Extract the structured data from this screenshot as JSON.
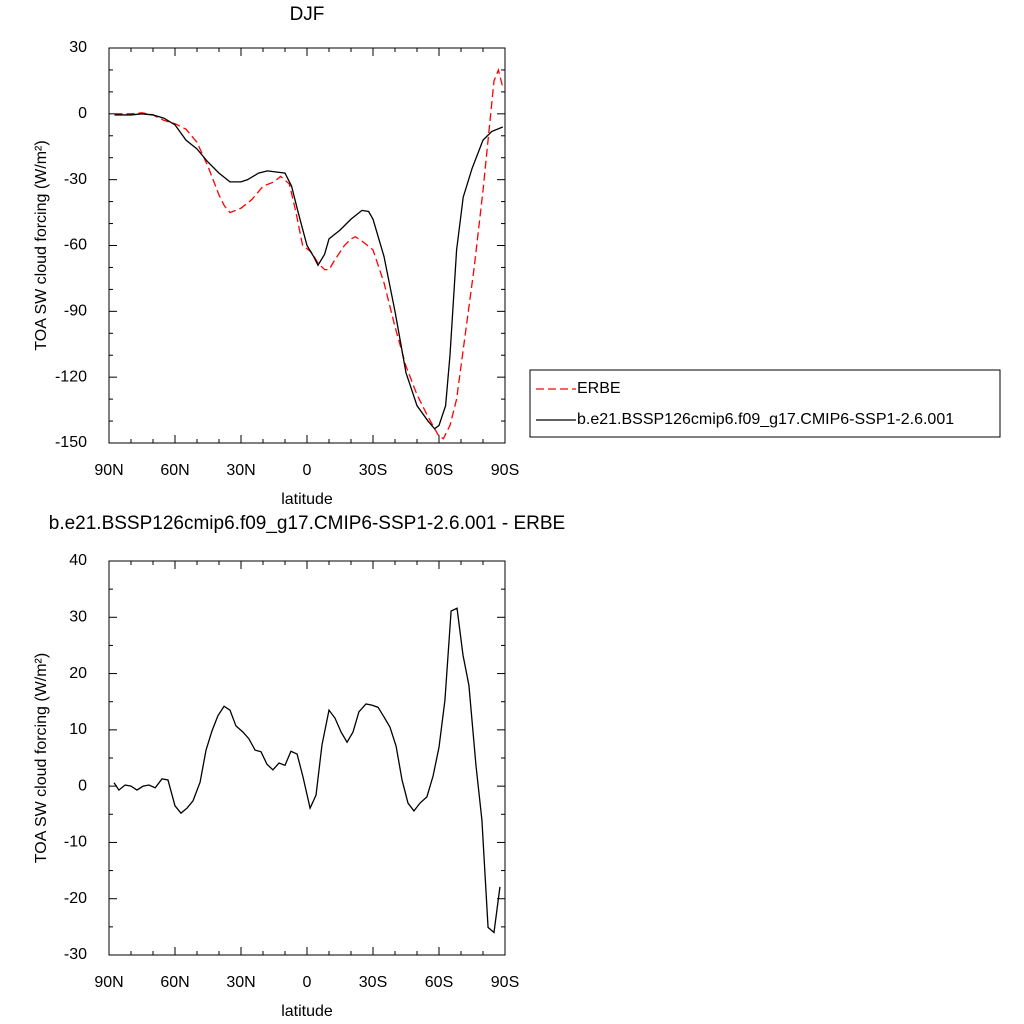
{
  "chart_data": [
    {
      "type": "line",
      "title": "DJF",
      "xlabel": "latitude",
      "ylabel": "TOA SW cloud forcing (W/m²)",
      "xlim": [
        90,
        -90
      ],
      "ylim": [
        -150,
        30
      ],
      "xticks": [
        {
          "value": 90,
          "label": "90N"
        },
        {
          "value": 60,
          "label": "60N"
        },
        {
          "value": 30,
          "label": "30N"
        },
        0,
        {
          "value": -30,
          "label": "30S"
        },
        {
          "value": -60,
          "label": "60S"
        },
        {
          "value": -90,
          "label": "90S"
        }
      ],
      "yticks": [
        -150,
        -120,
        -90,
        -60,
        -30,
        0,
        30
      ],
      "xminorticks": [
        80,
        70,
        50,
        40,
        20,
        10,
        -10,
        -20,
        -40,
        -50,
        -70,
        -80
      ],
      "yminorticks": [
        -140,
        -130,
        -110,
        -100,
        -80,
        -70,
        -50,
        -40,
        -20,
        -10,
        10,
        20
      ],
      "legend": true,
      "series": [
        {
          "name": "ERBE",
          "color": "#ff0000",
          "dash": "dashed",
          "x": [
            87.5,
            80,
            75,
            70,
            65,
            60,
            55,
            50,
            45,
            40,
            37.5,
            35,
            30,
            25,
            20,
            15,
            12,
            8,
            5,
            2,
            -2,
            -5,
            -8,
            -10,
            -13,
            -17,
            -20,
            -22,
            -25,
            -30,
            -35,
            -40,
            -45,
            -50,
            -55,
            -60,
            -62,
            -65,
            -68,
            -72,
            -76,
            -80,
            -83,
            -85,
            -87,
            -89
          ],
          "values": [
            0,
            0,
            0.5,
            -0.5,
            -3,
            -4.5,
            -7,
            -13,
            -24,
            -37,
            -42,
            -45,
            -43,
            -39,
            -33,
            -31,
            -28.5,
            -32,
            -45,
            -60,
            -63,
            -68,
            -71,
            -71,
            -66,
            -60,
            -57,
            -56,
            -58,
            -62,
            -77,
            -97,
            -115,
            -128,
            -138,
            -147,
            -148,
            -142,
            -130,
            -100,
            -70,
            -35,
            -5,
            15,
            20,
            12
          ]
        },
        {
          "name": "b.e21.BSSP126cmip6.f09_g17.CMIP6-SSP1-2.6.001",
          "color": "#000000",
          "dash": "solid",
          "x": [
            87.5,
            80,
            75,
            70,
            65,
            60,
            55,
            50,
            45,
            40,
            35,
            30,
            27,
            22,
            18,
            14,
            10,
            7,
            4,
            0,
            -3,
            -5,
            -8,
            -10,
            -15,
            -20,
            -25,
            -28,
            -30,
            -35,
            -40,
            -45,
            -50,
            -55,
            -58,
            -60,
            -63,
            -65,
            -68,
            -71,
            -75,
            -80,
            -84,
            -89
          ],
          "values": [
            -0.5,
            -0.5,
            0,
            -0.5,
            -2,
            -5,
            -12,
            -16,
            -22,
            -27,
            -31,
            -31,
            -30,
            -27,
            -26,
            -26.5,
            -27,
            -33,
            -45,
            -60,
            -65,
            -69,
            -64,
            -57,
            -53,
            -48,
            -44,
            -44.5,
            -48,
            -65,
            -90,
            -118,
            -133,
            -140,
            -143.5,
            -142,
            -133,
            -110,
            -62,
            -38,
            -25,
            -12,
            -8,
            -6
          ]
        }
      ]
    },
    {
      "type": "line",
      "title": "b.e21.BSSP126cmip6.f09_g17.CMIP6-SSP1-2.6.001 - ERBE",
      "xlabel": "latitude",
      "ylabel": "TOA SW cloud forcing (W/m²)",
      "xlim": [
        90,
        -90
      ],
      "ylim": [
        -30,
        40
      ],
      "xticks": [
        {
          "value": 90,
          "label": "90N"
        },
        {
          "value": 60,
          "label": "60N"
        },
        {
          "value": 30,
          "label": "30N"
        },
        0,
        {
          "value": -30,
          "label": "30S"
        },
        {
          "value": -60,
          "label": "60S"
        },
        {
          "value": -90,
          "label": "90S"
        }
      ],
      "yticks": [
        -30,
        -20,
        -10,
        0,
        10,
        20,
        30,
        40
      ],
      "xminorticks": [
        80,
        70,
        50,
        40,
        20,
        10,
        -10,
        -20,
        -40,
        -50,
        -70,
        -80
      ],
      "yminorticks": [
        -25,
        -15,
        -5,
        5,
        15,
        25,
        35
      ],
      "color": "#000000",
      "x": [
        87.7,
        85.5,
        82.7,
        80,
        77.3,
        74.5,
        71.8,
        69,
        65.9,
        63.2,
        60,
        57.3,
        54.5,
        51.8,
        48.6,
        45.9,
        43.2,
        40.5,
        37.7,
        35,
        32.3,
        29.1,
        26.4,
        23.6,
        20.9,
        18.2,
        15.5,
        12.7,
        10,
        7.3,
        4.5,
        1.8,
        -1.4,
        -4.1,
        -6.8,
        -10,
        -12.7,
        -15.5,
        -18.2,
        -20.9,
        -23.6,
        -26.8,
        -29.5,
        -32.3,
        -35,
        -37.7,
        -40.5,
        -43.2,
        -45.9,
        -48.6,
        -51.4,
        -54.5,
        -57.3,
        -60,
        -62.7,
        -65.5,
        -68.2,
        -70.9,
        -73.6,
        -76.8,
        -79.5,
        -82.3,
        -85,
        -87.7
      ],
      "values": [
        0.6,
        -0.7,
        0.2,
        0,
        -0.7,
        0,
        0.2,
        -0.3,
        1.3,
        1.1,
        -3.5,
        -4.8,
        -3.9,
        -2.6,
        0.7,
        6.4,
        9.8,
        12.5,
        14.2,
        13.5,
        10.7,
        9.6,
        8.4,
        6.4,
        6.1,
        3.9,
        2.9,
        4.1,
        3.7,
        6.2,
        5.7,
        1.6,
        -3.9,
        -1.6,
        7.3,
        13.5,
        12.1,
        9.6,
        7.8,
        9.6,
        13.2,
        14.6,
        14.4,
        14,
        12.3,
        10.5,
        7.1,
        1.1,
        -3,
        -4.4,
        -3,
        -1.9,
        1.8,
        6.9,
        15.3,
        31.1,
        31.6,
        23.3,
        17.9,
        3.7,
        -6,
        -25.1,
        -26,
        -17.9
      ]
    }
  ]
}
